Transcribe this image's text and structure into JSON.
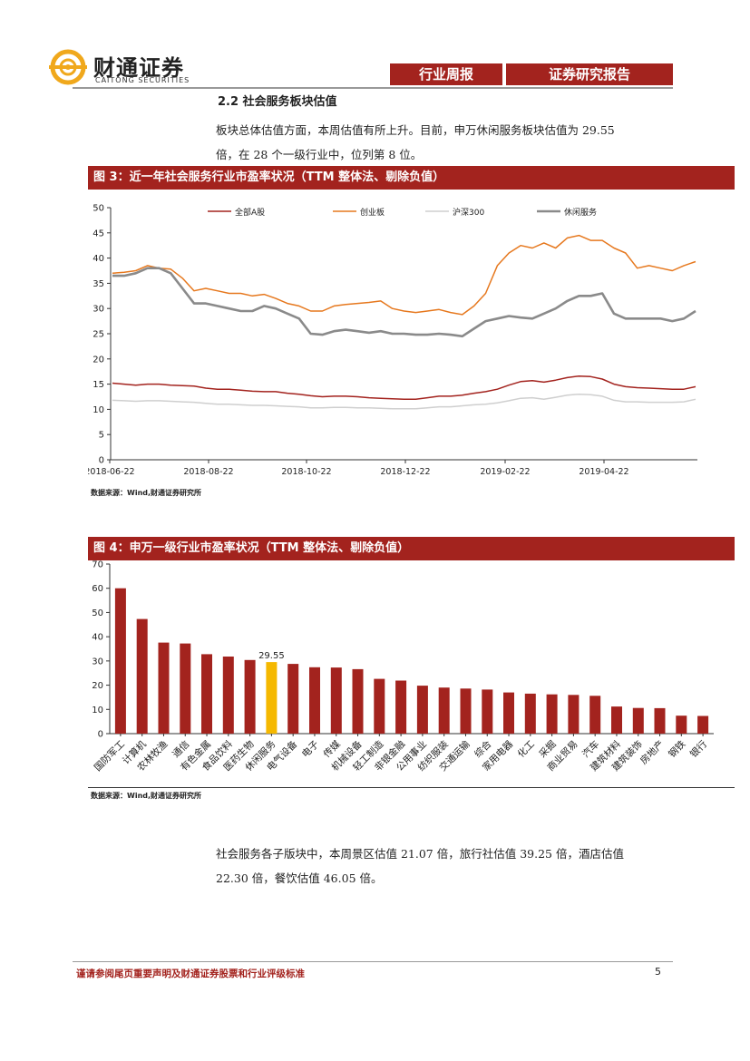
{
  "header": {
    "logo_cn": "财通证券",
    "logo_en": "CAITONG SECURITIES",
    "tag1": "行业周报",
    "tag2": "证券研究报告"
  },
  "section": {
    "title": "2.2  社会服务板块估值",
    "para1_line1": "板块总体估值方面，本周估值有所上升。目前，申万休闲服务板块估值为 29.55",
    "para1_line2": "倍，在 28 个一级行业中，位列第 8 位。"
  },
  "figure3": {
    "caption": "图 3：近一年社会服务行业市盈率状况（TTM 整体法、剔除负值）",
    "source": "数据来源：Wind,财通证券研究所"
  },
  "figure4": {
    "caption": "图 4：申万一级行业市盈率状况（TTM 整体法、剔除负值）",
    "source": "数据来源：Wind,财通证券研究所"
  },
  "section2": {
    "para2_line1": "社会服务各子版块中，本周景区估值 21.07 倍，旅行社估值 39.25 倍，酒店估值",
    "para2_line2": "22.30 倍，餐饮估值 46.05 倍。"
  },
  "footer": {
    "disclaimer": "谨请参阅尾页重要声明及财通证券股票和行业评级标准",
    "page": "5"
  },
  "colors": {
    "brand": "#a3231e",
    "highlight": "#f5b800"
  },
  "chart_data": [
    {
      "type": "line",
      "title": "近一年社会服务行业市盈率状况（TTM 整体法、剔除负值）",
      "ylim": [
        0,
        50
      ],
      "yticks": [
        "0",
        "5",
        "10",
        "15",
        "20",
        "25",
        "30",
        "35",
        "40",
        "45",
        "50"
      ],
      "xticks": [
        "2018-06-22",
        "2018-08-22",
        "2018-10-22",
        "2018-12-22",
        "2019-02-22",
        "2019-04-22"
      ],
      "x_range": [
        "2018-06-22",
        "2019-06-28"
      ],
      "series": [
        {
          "name": "全部A股",
          "color": "#a3231e",
          "width": 1.5,
          "values": [
            15.2,
            15.0,
            14.8,
            15.0,
            15.0,
            14.8,
            14.7,
            14.6,
            14.2,
            14.0,
            14.0,
            13.8,
            13.6,
            13.5,
            13.5,
            13.2,
            13.0,
            12.7,
            12.5,
            12.6,
            12.6,
            12.5,
            12.3,
            12.2,
            12.1,
            12.0,
            12.0,
            12.3,
            12.6,
            12.6,
            12.8,
            13.2,
            13.5,
            14.0,
            14.8,
            15.5,
            15.7,
            15.4,
            15.8,
            16.3,
            16.6,
            16.5,
            16.0,
            15.0,
            14.5,
            14.3,
            14.2,
            14.1,
            14.0,
            14.0,
            14.5
          ]
        },
        {
          "name": "创业板",
          "color": "#e6781e",
          "width": 1.5,
          "values": [
            37.0,
            37.2,
            37.5,
            38.5,
            38.0,
            37.8,
            36.0,
            33.5,
            34.0,
            33.5,
            33.0,
            33.0,
            32.5,
            32.8,
            32.0,
            31.0,
            30.5,
            29.5,
            29.5,
            30.5,
            30.8,
            31.0,
            31.2,
            31.5,
            30.0,
            29.5,
            29.2,
            29.5,
            29.8,
            29.2,
            28.8,
            30.5,
            33.0,
            38.5,
            41.0,
            42.5,
            42.0,
            43.0,
            42.0,
            44.0,
            44.5,
            43.5,
            43.5,
            42.0,
            41.0,
            38.0,
            38.5,
            38.0,
            37.5,
            38.5,
            39.3
          ]
        },
        {
          "name": "沪深300",
          "color": "#cfcfcf",
          "width": 1.5,
          "values": [
            11.8,
            11.7,
            11.6,
            11.7,
            11.7,
            11.6,
            11.5,
            11.4,
            11.2,
            11.0,
            11.0,
            10.9,
            10.8,
            10.8,
            10.7,
            10.6,
            10.5,
            10.3,
            10.3,
            10.4,
            10.4,
            10.3,
            10.3,
            10.2,
            10.1,
            10.1,
            10.1,
            10.3,
            10.5,
            10.5,
            10.7,
            10.9,
            11.0,
            11.3,
            11.7,
            12.2,
            12.3,
            12.0,
            12.4,
            12.8,
            13.0,
            12.9,
            12.6,
            11.8,
            11.5,
            11.5,
            11.4,
            11.4,
            11.4,
            11.5,
            12.0
          ]
        },
        {
          "name": "休闲服务",
          "color": "#8a8a8a",
          "width": 2.6,
          "values": [
            36.5,
            36.5,
            37.0,
            38.0,
            38.0,
            37.0,
            34.0,
            31.0,
            31.0,
            30.5,
            30.0,
            29.5,
            29.5,
            30.5,
            30.0,
            29.0,
            28.0,
            25.0,
            24.8,
            25.5,
            25.8,
            25.5,
            25.2,
            25.5,
            25.0,
            25.0,
            24.8,
            24.8,
            25.0,
            24.8,
            24.5,
            26.0,
            27.5,
            28.0,
            28.5,
            28.2,
            28.0,
            29.0,
            30.0,
            31.5,
            32.5,
            32.5,
            33.0,
            29.0,
            28.0,
            28.0,
            28.0,
            28.0,
            27.5,
            28.0,
            29.5
          ]
        }
      ]
    },
    {
      "type": "bar",
      "title": "申万一级行业市盈率状况（TTM 整体法、剔除负值）",
      "ylim": [
        0,
        70
      ],
      "yticks": [
        "0",
        "10",
        "20",
        "30",
        "40",
        "50",
        "60",
        "70"
      ],
      "highlight_label": "29.55",
      "highlight_index": 7,
      "categories": [
        "国防军工",
        "计算机",
        "农林牧渔",
        "通信",
        "有色金属",
        "食品饮料",
        "医药生物",
        "休闲服务",
        "电气设备",
        "电子",
        "传媒",
        "机械设备",
        "轻工制造",
        "非银金融",
        "公用事业",
        "纺织服装",
        "交通运输",
        "综合",
        "家用电器",
        "化工",
        "采掘",
        "商业贸易",
        "汽车",
        "建筑材料",
        "建筑装饰",
        "房地产",
        "钢铁",
        "银行"
      ],
      "values": [
        60.0,
        47.3,
        37.6,
        37.2,
        32.8,
        31.8,
        30.4,
        29.55,
        28.8,
        27.4,
        27.3,
        26.6,
        22.6,
        21.9,
        19.8,
        19.0,
        18.6,
        18.2,
        17.0,
        16.5,
        16.2,
        16.0,
        15.6,
        11.2,
        10.6,
        10.5,
        7.4,
        7.3
      ]
    }
  ]
}
